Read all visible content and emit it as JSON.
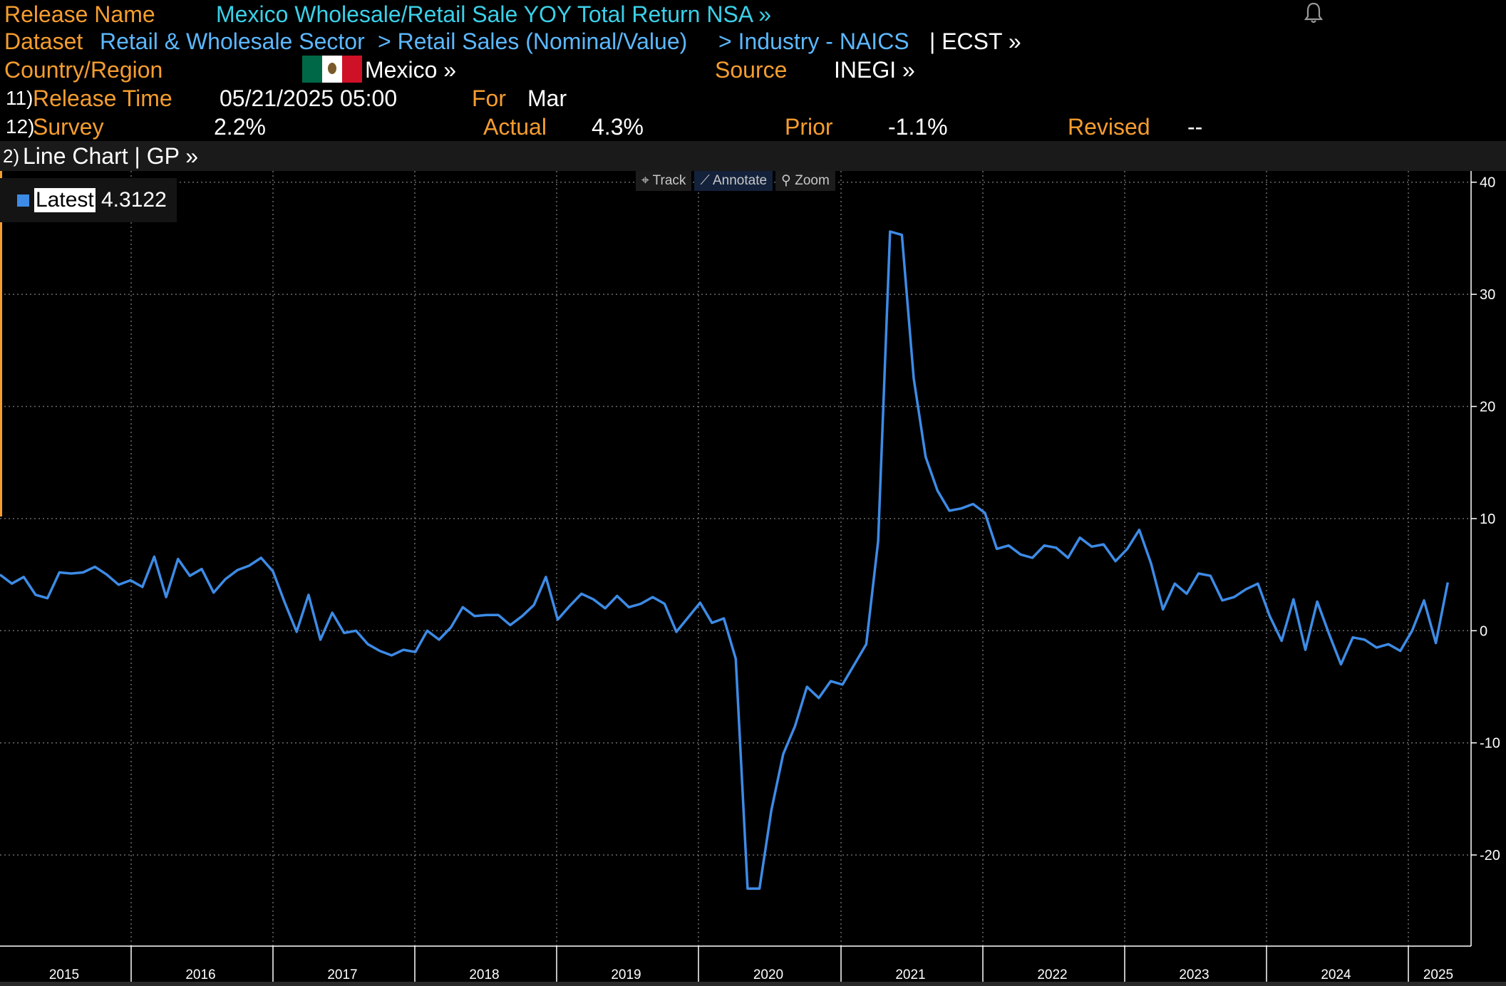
{
  "header": {
    "release_name_label": "Release Name",
    "release_name_value": "Mexico Wholesale/Retail Sale YOY Total Return NSA »",
    "dataset_label": "Dataset",
    "dataset_crumb1": "Retail & Wholesale Sector",
    "dataset_crumb2": "> Retail Sales (Nominal/Value)",
    "dataset_crumb3": "> Industry - NAICS",
    "dataset_suffix": "| ECST »",
    "country_label": "Country/Region",
    "country_value": "Mexico »",
    "source_label": "Source",
    "source_value": "INEGI »",
    "release_time_num": "11)",
    "release_time_label": "Release Time",
    "release_time_value": "05/21/2025 05:00",
    "for_label": "For",
    "for_value": "Mar",
    "survey_num": "12)",
    "survey_label": "Survey",
    "survey_value": "2.2%",
    "actual_label": "Actual",
    "actual_value": "4.3%",
    "prior_label": "Prior",
    "prior_value": "-1.1%",
    "revised_label": "Revised",
    "revised_value": "--"
  },
  "flag_colors": [
    "#006847",
    "#ffffff",
    "#ce1126"
  ],
  "chart_bar": {
    "num": "2)",
    "label": "Line Chart | GP »"
  },
  "tools": {
    "track": "Track",
    "annotate": "Annotate",
    "zoom": "Zoom"
  },
  "legend": {
    "name": "Latest",
    "value": "4.3122"
  },
  "colors": {
    "accent": "#f59d2f",
    "link": "#3bd0e8",
    "line": "#3d8be6"
  },
  "chart_data": {
    "type": "line",
    "x_labels": [
      "2015",
      "2016",
      "2017",
      "2018",
      "2019",
      "2020",
      "2021",
      "2022",
      "2023",
      "2024",
      "2025"
    ],
    "ylim": [
      -28,
      41
    ],
    "yticks": [
      -20,
      -10,
      0,
      10,
      20,
      30,
      40
    ],
    "ytick_labels": [
      "-20",
      "-10",
      "0",
      "10",
      "20",
      "30",
      "40"
    ],
    "grid": true,
    "series": [
      {
        "values": [
          5.0,
          4.2,
          4.8,
          3.2,
          2.9,
          5.2,
          5.1,
          5.2,
          5.7,
          5.0,
          4.1,
          4.5,
          3.9,
          6.6,
          3.0,
          6.4,
          4.9,
          5.5,
          3.4,
          4.6,
          5.4,
          5.8,
          6.5,
          5.3,
          2.5,
          -0.1,
          3.2,
          -0.8,
          1.6,
          -0.2,
          0.0,
          -1.2,
          -1.8,
          -2.2,
          -1.7,
          -1.9,
          0.0,
          -0.8,
          0.3,
          2.1,
          1.3,
          1.4,
          1.4,
          0.5,
          1.3,
          2.3,
          4.8,
          1.0,
          2.2,
          3.3,
          2.8,
          2.0,
          3.1,
          2.1,
          2.4,
          3.0,
          2.4,
          -0.1,
          1.2,
          2.5,
          0.7,
          1.1,
          -2.5,
          -23.0,
          -23.0,
          -16.0,
          -11.0,
          -8.5,
          -5.0,
          -6.0,
          -4.5,
          -4.8,
          -3.0,
          -1.2,
          8.0,
          35.6,
          35.3,
          22.5,
          15.5,
          12.5,
          10.7,
          10.9,
          11.3,
          10.5,
          7.3,
          7.6,
          6.8,
          6.5,
          7.6,
          7.4,
          6.5,
          8.3,
          7.5,
          7.7,
          6.2,
          7.3,
          9.0,
          6.0,
          1.9,
          4.2,
          3.3,
          5.1,
          4.9,
          2.7,
          3.0,
          3.7,
          4.2,
          1.3,
          -0.9,
          2.8,
          -1.7,
          2.6,
          -0.3,
          -3.0,
          -0.6,
          -0.8,
          -1.5,
          -1.2,
          -1.8,
          0.0,
          2.7,
          -1.1,
          4.3
        ]
      }
    ]
  }
}
